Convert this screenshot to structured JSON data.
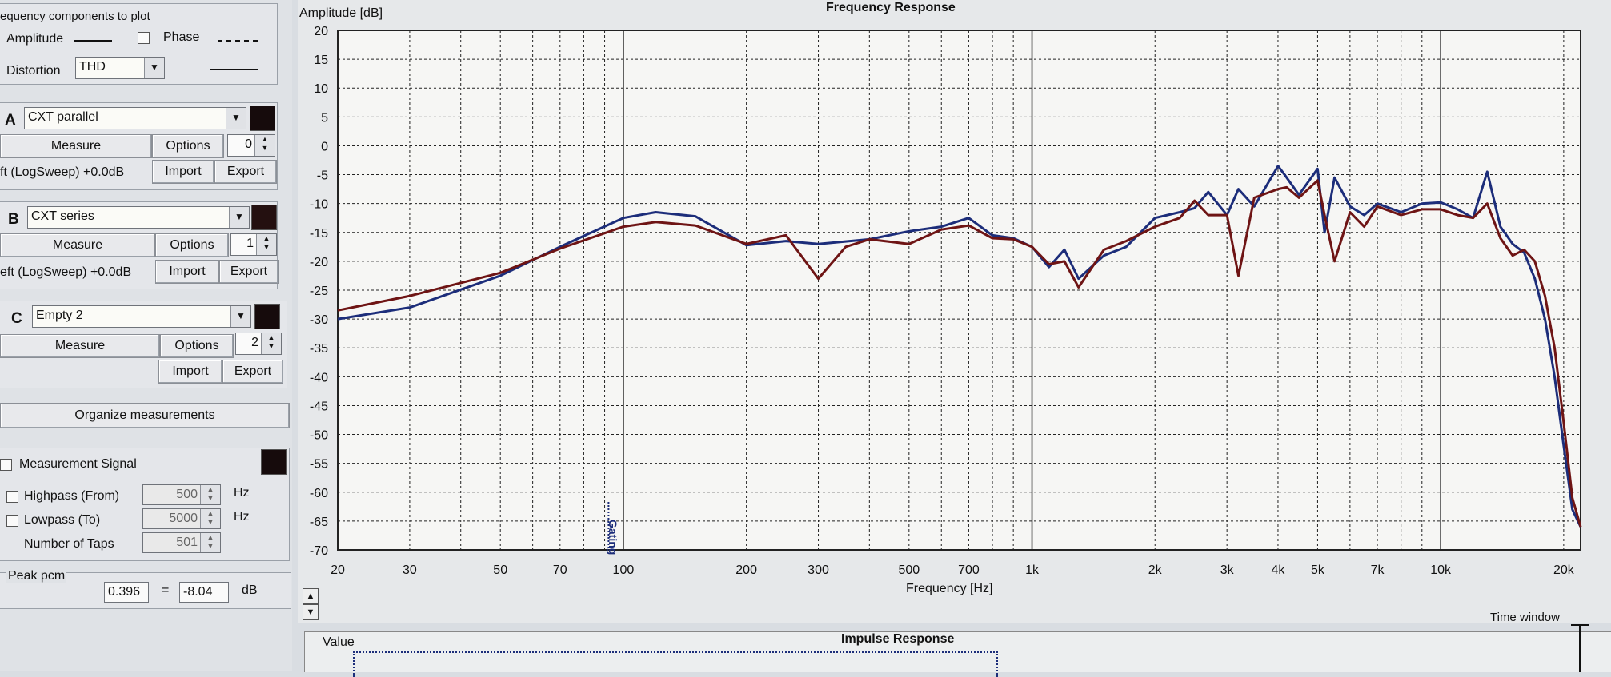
{
  "left_panel": {
    "components_title": "equency components to plot",
    "amplitude_label": "Amplitude",
    "phase_label": "Phase",
    "distortion_label": "Distortion",
    "distortion_value": "THD",
    "channels": [
      {
        "letter": "A",
        "name": "CXT parallel",
        "measure": "Measure",
        "options": "Options",
        "spin": "0",
        "source": "ft (LogSweep) +0.0dB",
        "import": "Import",
        "export": "Export"
      },
      {
        "letter": "B",
        "name": "CXT series",
        "measure": "Measure",
        "options": "Options",
        "spin": "1",
        "source": "eft (LogSweep) +0.0dB",
        "import": "Import",
        "export": "Export"
      },
      {
        "letter": "C",
        "name": "Empty 2",
        "measure": "Measure",
        "options": "Options",
        "spin": "2",
        "source": "",
        "import": "Import",
        "export": "Export"
      }
    ],
    "organize_button": "Organize measurements",
    "signal": {
      "title": "Measurement Signal",
      "highpass_label": "Highpass (From)",
      "highpass_value": "500",
      "lowpass_label": "Lowpass (To)",
      "lowpass_value": "5000",
      "unit": "Hz",
      "taps_label": "Number of Taps",
      "taps_value": "501"
    },
    "peak": {
      "label": "Peak pcm",
      "pcm_value": "0.396",
      "equals": "=",
      "db_value": "-8.04",
      "db_unit": "dB"
    }
  },
  "graph": {
    "time_window_label": "Time window",
    "impulse_title": "Impulse Response",
    "impulse_value_label": "Value",
    "marker_label": "Gating"
  },
  "chart_data": {
    "type": "line",
    "title": "Frequency Response",
    "xlabel": "Frequency [Hz]",
    "ylabel": "Amplitude [dB]",
    "x_scale": "log",
    "xlim": [
      20,
      22000
    ],
    "ylim": [
      -70,
      20
    ],
    "grid": true,
    "x_tick_labels": [
      "20",
      "30",
      "50",
      "70",
      "100",
      "200",
      "300",
      "500",
      "700",
      "1k",
      "2k",
      "3k",
      "4k",
      "5k",
      "7k",
      "10k",
      "20k"
    ],
    "y_tick_labels": [
      "20",
      "15",
      "10",
      "5",
      "0",
      "-5",
      "-10",
      "-15",
      "-20",
      "-25",
      "-30",
      "-35",
      "-40",
      "-45",
      "-50",
      "-55",
      "-60",
      "-65",
      "-70"
    ],
    "colors": {
      "series_a": "#1c2d7a",
      "series_b": "#6e1414"
    },
    "series": [
      {
        "color": "#1c2d7a",
        "x": [
          20,
          30,
          50,
          70,
          100,
          120,
          150,
          200,
          250,
          300,
          400,
          500,
          600,
          700,
          800,
          900,
          1000,
          1100,
          1200,
          1300,
          1500,
          1700,
          2000,
          2300,
          2500,
          2700,
          3000,
          3200,
          3500,
          4000,
          4200,
          4500,
          5000,
          5200,
          5500,
          6000,
          6500,
          7000,
          8000,
          9000,
          10000,
          11000,
          12000,
          13000,
          14000,
          15000,
          16000,
          17000,
          18000,
          19000,
          20000,
          21000,
          22000
        ],
        "y": [
          -30,
          -28,
          -22.5,
          -17.5,
          -12.5,
          -11.5,
          -12.2,
          -17.2,
          -16.5,
          -17,
          -16.2,
          -14.8,
          -14,
          -12.5,
          -15.5,
          -16,
          -17.5,
          -21,
          -18,
          -23,
          -19,
          -17.5,
          -12.5,
          -11.5,
          -10.8,
          -8,
          -12,
          -7.5,
          -10.5,
          -3.5,
          -5.5,
          -8.5,
          -4,
          -15,
          -5.5,
          -10.5,
          -12,
          -10,
          -11.5,
          -10,
          -9.8,
          -11,
          -12.5,
          -4.5,
          -14,
          -17,
          -18.5,
          -23,
          -30,
          -40,
          -52,
          -63,
          -66
        ]
      },
      {
        "color": "#6e1414",
        "x": [
          20,
          30,
          50,
          70,
          100,
          120,
          150,
          200,
          250,
          300,
          350,
          400,
          500,
          600,
          700,
          800,
          900,
          1000,
          1100,
          1200,
          1300,
          1500,
          1700,
          2000,
          2300,
          2500,
          2700,
          3000,
          3200,
          3500,
          4000,
          4200,
          4500,
          5000,
          5200,
          5500,
          6000,
          6500,
          7000,
          8000,
          9000,
          10000,
          11000,
          12000,
          13000,
          14000,
          15000,
          16000,
          17000,
          18000,
          19000,
          20000,
          21000,
          22000
        ],
        "y": [
          -28.5,
          -26,
          -22,
          -17.8,
          -14,
          -13.2,
          -13.8,
          -17,
          -15.5,
          -23,
          -17.5,
          -16.2,
          -17,
          -14.5,
          -13.8,
          -16,
          -16.2,
          -17.5,
          -20.5,
          -20,
          -24.5,
          -18,
          -16.5,
          -14,
          -12.5,
          -9.5,
          -12,
          -12,
          -22.5,
          -9,
          -7.5,
          -7.2,
          -9,
          -6,
          -12,
          -20,
          -11.5,
          -14,
          -10.5,
          -12,
          -11,
          -11,
          -12,
          -12.5,
          -10,
          -16,
          -19,
          -18,
          -20,
          -26,
          -35,
          -48,
          -61,
          -66
        ]
      }
    ]
  }
}
